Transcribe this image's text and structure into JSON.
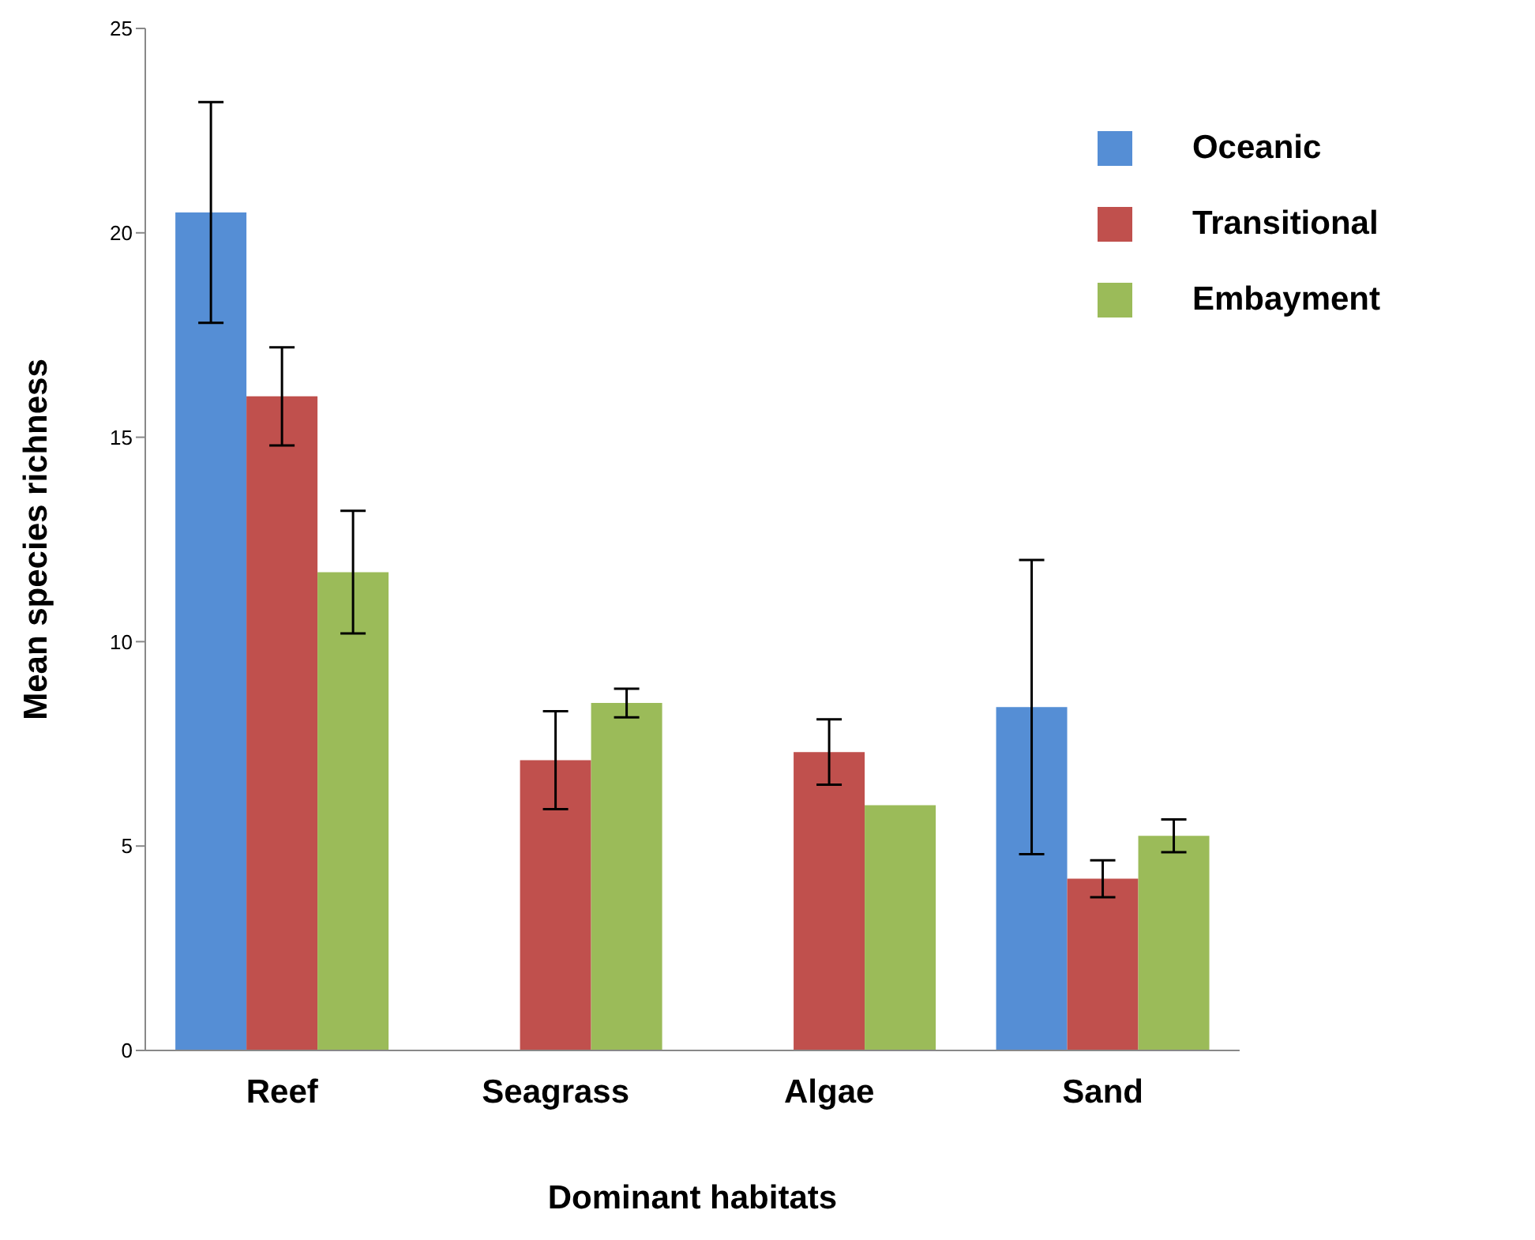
{
  "chart_data": {
    "type": "bar",
    "xlabel": "Dominant habitats",
    "ylabel": "Mean species richness",
    "categories": [
      "Reef",
      "Seagrass",
      "Algae",
      "Sand"
    ],
    "series": [
      {
        "name": "Oceanic",
        "color": "#558ed5",
        "values": [
          20.5,
          null,
          null,
          8.4
        ],
        "errors": [
          2.7,
          null,
          null,
          3.6
        ]
      },
      {
        "name": "Transitional",
        "color": "#c0504d",
        "values": [
          16.0,
          7.1,
          7.3,
          4.2
        ],
        "errors": [
          1.2,
          1.2,
          0.8,
          0.45
        ]
      },
      {
        "name": "Embayment",
        "color": "#9bbb59",
        "values": [
          11.7,
          8.5,
          6.0,
          5.25
        ],
        "errors": [
          1.5,
          0.35,
          null,
          0.4
        ]
      }
    ],
    "ylim": [
      0,
      25
    ],
    "yticks": [
      0,
      5,
      10,
      15,
      20,
      25
    ],
    "grid": false,
    "legend": "top right"
  }
}
